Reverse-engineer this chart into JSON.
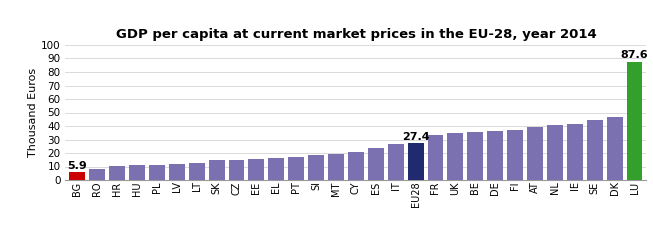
{
  "title": "GDP per capita at current market prices in the EU-28, year 2014",
  "ylabel": "Thousand Euros",
  "ylim": [
    0,
    100
  ],
  "yticks": [
    0,
    10,
    20,
    30,
    40,
    50,
    60,
    70,
    80,
    90,
    100
  ],
  "categories": [
    "BG",
    "RO",
    "HR",
    "HU",
    "PL",
    "LV",
    "LT",
    "SK",
    "CZ",
    "EE",
    "EL",
    "PT",
    "SI",
    "MT",
    "CY",
    "ES",
    "IT",
    "EU28",
    "FR",
    "UK",
    "BE",
    "DE",
    "FI",
    "AT",
    "NL",
    "IE",
    "SE",
    "DK",
    "LU"
  ],
  "values": [
    5.9,
    8.0,
    10.5,
    10.8,
    10.9,
    12.0,
    12.8,
    14.8,
    15.1,
    15.8,
    16.5,
    17.1,
    18.8,
    19.2,
    20.6,
    23.4,
    26.5,
    27.4,
    33.2,
    35.0,
    35.7,
    36.0,
    37.4,
    39.4,
    40.6,
    41.4,
    44.8,
    46.3,
    87.6
  ],
  "bar_colors": {
    "BG": "#cc0000",
    "EU28": "#1f2b6e",
    "LU": "#33a02c",
    "default": "#7b70b0"
  },
  "annotated": {
    "BG": "5.9",
    "EU28": "27.4",
    "LU": "87.6"
  },
  "background_color": "#ffffff",
  "title_fontsize": 9.5,
  "ylabel_fontsize": 8,
  "tick_fontsize": 7.5,
  "annot_fontsize": 8
}
